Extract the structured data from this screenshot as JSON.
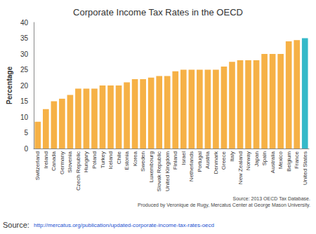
{
  "chart_data": {
    "type": "bar",
    "title": "Corporate Income Tax Rates in the OECD",
    "y_label": "Percentage",
    "categories": [
      "Switzerland",
      "Ireland",
      "Canada",
      "Germany",
      "Slovenia",
      "Czech Republic",
      "Hungary",
      "Poland",
      "Turkey",
      "Iceland",
      "Chile",
      "Estonia",
      "Korea",
      "Sweden",
      "Luxembourg",
      "Slovak Republic",
      "United Kingdom",
      "Finland",
      "Israel",
      "Netherlands",
      "Portugal",
      "Austria",
      "Denmark",
      "Greece",
      "Italy",
      "New Zealand",
      "Norway",
      "Japan",
      "Spain",
      "Australia",
      "Mexico",
      "Belgium",
      "France",
      "United States"
    ],
    "values": [
      8.5,
      12.5,
      15,
      15.8,
      17,
      19,
      19,
      19,
      20,
      20,
      20,
      21,
      22,
      22,
      22.5,
      23,
      23,
      24.5,
      25,
      25,
      25,
      25,
      25,
      26,
      27.5,
      28,
      28,
      28,
      30,
      30,
      30,
      34,
      34.4,
      35
    ],
    "colors": [
      "#f6b146",
      "#f6b146",
      "#f6b146",
      "#f6b146",
      "#f6b146",
      "#f6b146",
      "#f6b146",
      "#f6b146",
      "#f6b146",
      "#f6b146",
      "#f6b146",
      "#f6b146",
      "#f6b146",
      "#f6b146",
      "#f6b146",
      "#f6b146",
      "#f6b146",
      "#f6b146",
      "#f6b146",
      "#f6b146",
      "#f6b146",
      "#f6b146",
      "#f6b146",
      "#f6b146",
      "#f6b146",
      "#f6b146",
      "#f6b146",
      "#f6b146",
      "#f6b146",
      "#f6b146",
      "#f6b146",
      "#f6b146",
      "#f6b146",
      "#35b9c9"
    ],
    "ylim": [
      0,
      40
    ],
    "yticks": [
      0,
      5,
      10,
      15,
      20,
      25,
      30,
      35,
      40
    ],
    "grid": false,
    "annotations": [
      "Source: 2013 OECD Tax Database.",
      "Produced by Veronique de Rugy, Mercatus Center at George Mason University.",
      "Source:",
      "http://mercatus.org/publication/updated-corporate-income-tax-rates-oecd"
    ]
  }
}
